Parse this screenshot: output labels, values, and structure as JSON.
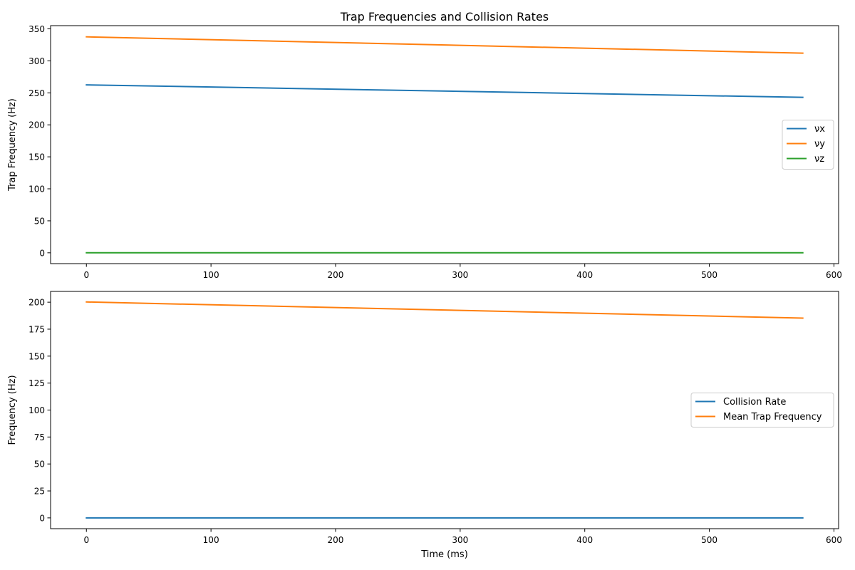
{
  "figure_title": "Trap Frequencies and Collision Rates",
  "colors": {
    "blue": "#1f77b4",
    "orange": "#ff7f0e",
    "green": "#2ca02c"
  },
  "chart_data": [
    {
      "type": "line",
      "title": "Trap Frequencies and Collision Rates",
      "xlabel": "",
      "ylabel": "Trap Frequency (Hz)",
      "xlim": [
        -28.75,
        603.75
      ],
      "ylim": [
        -16.9,
        355.0
      ],
      "xticks": [
        0,
        100,
        200,
        300,
        400,
        500,
        600
      ],
      "yticks": [
        0,
        50,
        100,
        150,
        200,
        250,
        300,
        350
      ],
      "grid": false,
      "legend_position": "center-right",
      "series": [
        {
          "name": "νx",
          "color": "#1f77b4",
          "x": [
            0,
            575
          ],
          "y": [
            262.5,
            243.0
          ]
        },
        {
          "name": "νy",
          "color": "#ff7f0e",
          "x": [
            0,
            575
          ],
          "y": [
            337.5,
            312.0
          ]
        },
        {
          "name": "νz",
          "color": "#2ca02c",
          "x": [
            0,
            575
          ],
          "y": [
            0,
            0
          ]
        }
      ]
    },
    {
      "type": "line",
      "title": "",
      "xlabel": "Time (ms)",
      "ylabel": "Frequency (Hz)",
      "xlim": [
        -28.75,
        603.75
      ],
      "ylim": [
        -10.0,
        210.0
      ],
      "xticks": [
        0,
        100,
        200,
        300,
        400,
        500,
        600
      ],
      "yticks": [
        0,
        25,
        50,
        75,
        100,
        125,
        150,
        175,
        200
      ],
      "grid": false,
      "legend_position": "center-right",
      "series": [
        {
          "name": "Collision Rate",
          "color": "#1f77b4",
          "x": [
            0,
            575
          ],
          "y": [
            0,
            0
          ]
        },
        {
          "name": "Mean Trap Frequency",
          "color": "#ff7f0e",
          "x": [
            0,
            575
          ],
          "y": [
            200.2,
            185.2
          ]
        }
      ]
    }
  ]
}
